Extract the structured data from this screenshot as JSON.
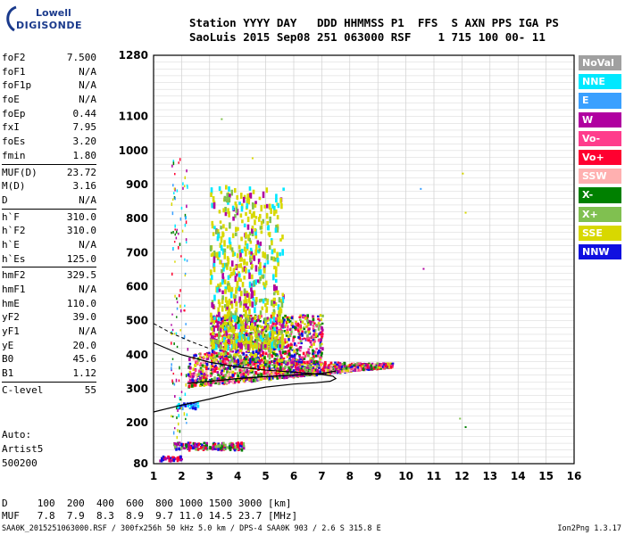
{
  "logo": {
    "line1": "Lowell",
    "line2": "DIGISONDE"
  },
  "header": {
    "line1": "Station YYYY DAY   DDD HHMMSS P1  FFS  S AXN PPS IGA PS",
    "line2": "SaoLuis 2015 Sep08 251 063000 RSF    1 715 100 00- 11"
  },
  "params": {
    "g1": [
      {
        "k": "foF2",
        "v": "7.500"
      },
      {
        "k": "foF1",
        "v": "N/A"
      },
      {
        "k": "foF1p",
        "v": "N/A"
      },
      {
        "k": "foE",
        "v": "N/A"
      },
      {
        "k": "foEp",
        "v": "0.44"
      },
      {
        "k": "fxI",
        "v": "7.95"
      },
      {
        "k": "foEs",
        "v": "3.20"
      },
      {
        "k": "fmin",
        "v": "1.80"
      }
    ],
    "g2": [
      {
        "k": "MUF(D)",
        "v": "23.72"
      },
      {
        "k": "M(D)",
        "v": "3.16"
      },
      {
        "k": "D",
        "v": "N/A"
      }
    ],
    "g3": [
      {
        "k": "h`F",
        "v": "310.0"
      },
      {
        "k": "h`F2",
        "v": "310.0"
      },
      {
        "k": "h`E",
        "v": "N/A"
      },
      {
        "k": "h`Es",
        "v": "125.0"
      }
    ],
    "g4": [
      {
        "k": "hmF2",
        "v": "329.5"
      },
      {
        "k": "hmF1",
        "v": "N/A"
      },
      {
        "k": "hmE",
        "v": "110.0"
      },
      {
        "k": "yF2",
        "v": "39.0"
      },
      {
        "k": "yF1",
        "v": "N/A"
      },
      {
        "k": "yE",
        "v": "20.0"
      },
      {
        "k": "B0",
        "v": "45.6"
      },
      {
        "k": "B1",
        "v": "1.12"
      }
    ],
    "g5": [
      {
        "k": "C-level",
        "v": "55"
      }
    ]
  },
  "auto": {
    "l1": "Auto:",
    "l2": "Artist5",
    "l3": "500200"
  },
  "legend": [
    {
      "label": "NoVal",
      "color": "#a0a0a0"
    },
    {
      "label": "NNE",
      "color": "#00e8ff"
    },
    {
      "label": "E",
      "color": "#3aa0ff"
    },
    {
      "label": "W",
      "color": "#b000a0"
    },
    {
      "label": "Vo-",
      "color": "#ff3c8c"
    },
    {
      "label": "Vo+",
      "color": "#ff0030"
    },
    {
      "label": "SSW",
      "color": "#ffb0b0"
    },
    {
      "label": "X-",
      "color": "#008000"
    },
    {
      "label": "X+",
      "color": "#80c050"
    },
    {
      "label": "SSE",
      "color": "#d8d800"
    },
    {
      "label": "NNW",
      "color": "#1010e0"
    }
  ],
  "bottom": {
    "row1": "D     100  200  400  600  800 1000 1500 3000 [km]",
    "row2": "MUF   7.8  7.9  8.3  8.9  9.7 11.0 14.5 23.7 [MHz]"
  },
  "footer": {
    "left": "SAA0K_2015251063000.RSF / 300fx256h 50 kHz 5.0 km / DPS-4 SAA0K 903 / 2.6 S 315.8 E",
    "right": "Ion2Png 1.3.17"
  },
  "chart_data": {
    "type": "scatter",
    "xlim": [
      1,
      16
    ],
    "ylim": [
      80,
      1280
    ],
    "x_ticks": [
      1,
      2,
      3,
      4,
      5,
      6,
      7,
      8,
      9,
      10,
      11,
      12,
      13,
      14,
      15,
      16
    ],
    "y_ticks": [
      80,
      200,
      300,
      400,
      500,
      600,
      700,
      800,
      900,
      1000,
      1100,
      1280
    ],
    "grid": true,
    "profile_curve": {
      "f": [
        1.0,
        2.0,
        3.0,
        4.0,
        5.0,
        6.0,
        6.8,
        7.3,
        7.5,
        7.4,
        7.0,
        6.0,
        5.0,
        4.0,
        3.0,
        2.0,
        1.0
      ],
      "h": [
        232,
        252,
        270,
        290,
        305,
        314,
        318,
        322,
        330,
        337,
        342,
        349,
        355,
        364,
        378,
        400,
        435
      ]
    },
    "trace_line": {
      "f": [
        2.2,
        3.0,
        4.0,
        5.0,
        6.0,
        7.0,
        7.5
      ],
      "h": [
        316,
        322,
        330,
        336,
        340,
        345,
        352
      ]
    },
    "dashed_line": {
      "f": [
        1.0,
        1.6,
        2.3,
        3.0
      ],
      "h": [
        492,
        465,
        440,
        418
      ]
    },
    "echo_clusters": [
      {
        "name": "F-trace",
        "f": [
          2.2,
          9.5
        ],
        "h": [
          300,
          420
        ],
        "n": 1500,
        "colors": [
          "Vo+",
          "Vo-",
          "W",
          "SSW",
          "X+",
          "X-",
          "NNW",
          "SSE"
        ]
      },
      {
        "name": "F-spread",
        "f": [
          3.0,
          7.0
        ],
        "h": [
          380,
          520
        ],
        "n": 900,
        "colors": [
          "Vo+",
          "Vo-",
          "W",
          "SSE",
          "X-",
          "NNW",
          "X+"
        ]
      },
      {
        "name": "SSE-cloud",
        "f": [
          3.0,
          5.6
        ],
        "h": [
          430,
          900
        ],
        "n": 700,
        "colors": [
          "SSE",
          "SSE",
          "SSE",
          "X+",
          "NNE",
          "W"
        ]
      },
      {
        "name": "Es-layer",
        "f": [
          1.7,
          4.2
        ],
        "h": [
          125,
          145
        ],
        "n": 180,
        "colors": [
          "NNW",
          "X-",
          "X+",
          "W",
          "Vo+"
        ]
      },
      {
        "name": "Es-low",
        "f": [
          1.2,
          2.0
        ],
        "h": [
          92,
          105
        ],
        "n": 40,
        "colors": [
          "NNW",
          "W",
          "Vo+"
        ]
      },
      {
        "name": "E-trace",
        "f": [
          1.8,
          2.6
        ],
        "h": [
          245,
          262
        ],
        "n": 40,
        "colors": [
          "NNE",
          "E",
          "NNW"
        ]
      },
      {
        "name": "low-f",
        "f": [
          1.6,
          2.2
        ],
        "h": [
          160,
          980
        ],
        "n": 120,
        "colors": [
          "NNE",
          "Vo+",
          "W",
          "X-",
          "SSE",
          "E"
        ]
      }
    ],
    "isolated_points": [
      {
        "f": 10.5,
        "h": 890,
        "c": "E"
      },
      {
        "f": 10.6,
        "h": 655,
        "c": "W"
      },
      {
        "f": 12.0,
        "h": 935,
        "c": "SSE"
      },
      {
        "f": 11.9,
        "h": 215,
        "c": "X+"
      },
      {
        "f": 12.1,
        "h": 190,
        "c": "X-"
      },
      {
        "f": 12.1,
        "h": 820,
        "c": "SSE"
      },
      {
        "f": 3.4,
        "h": 1095,
        "c": "X+"
      },
      {
        "f": 4.5,
        "h": 980,
        "c": "SSE"
      }
    ]
  }
}
